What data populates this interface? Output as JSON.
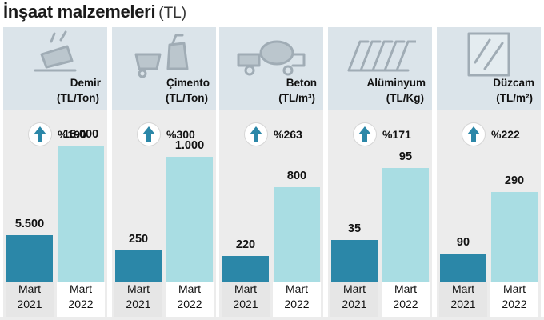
{
  "title": "İnşaat malzemeleri",
  "title_unit": "(TL)",
  "years": {
    "first_month": "Mart",
    "first_year": "2021",
    "second_month": "Mart",
    "second_year": "2022"
  },
  "colors": {
    "bar_2021": "#2b87a8",
    "bar_2022": "#a9dde3",
    "arrow": "#2b87a8",
    "header_bg": "#dbe4ea",
    "panel_bg": "#ececec"
  },
  "chart_data": {
    "type": "bar",
    "title": "İnşaat malzemeleri (TL)",
    "categories": [
      "Mart 2021",
      "Mart 2022"
    ],
    "panels": [
      {
        "name": "Demir",
        "unit": "(TL/Ton)",
        "icon": "steel-ladle-icon",
        "change": "%190",
        "values": [
          5500,
          16000
        ],
        "value_labels": [
          "5.500",
          "16.000"
        ]
      },
      {
        "name": "Çimento",
        "unit": "(TL/Ton)",
        "icon": "cement-mixer-icon",
        "change": "%300",
        "values": [
          250,
          1000
        ],
        "value_labels": [
          "250",
          "1.000"
        ]
      },
      {
        "name": "Beton",
        "unit": "(TL/m³)",
        "icon": "concrete-truck-icon",
        "change": "%263",
        "values": [
          220,
          800
        ],
        "value_labels": [
          "220",
          "800"
        ]
      },
      {
        "name": "Alüminyum",
        "unit": "(TL/Kg)",
        "icon": "aluminum-sheet-icon",
        "change": "%171",
        "values": [
          35,
          95
        ],
        "value_labels": [
          "35",
          "95"
        ]
      },
      {
        "name": "Düzcam",
        "unit": "(TL/m²)",
        "icon": "flat-glass-icon",
        "change": "%222",
        "values": [
          90,
          290
        ],
        "value_labels": [
          "90",
          "290"
        ]
      }
    ],
    "series": [
      {
        "name": "Mart 2021"
      },
      {
        "name": "Mart 2022"
      }
    ],
    "legend": "none",
    "grid": false
  }
}
